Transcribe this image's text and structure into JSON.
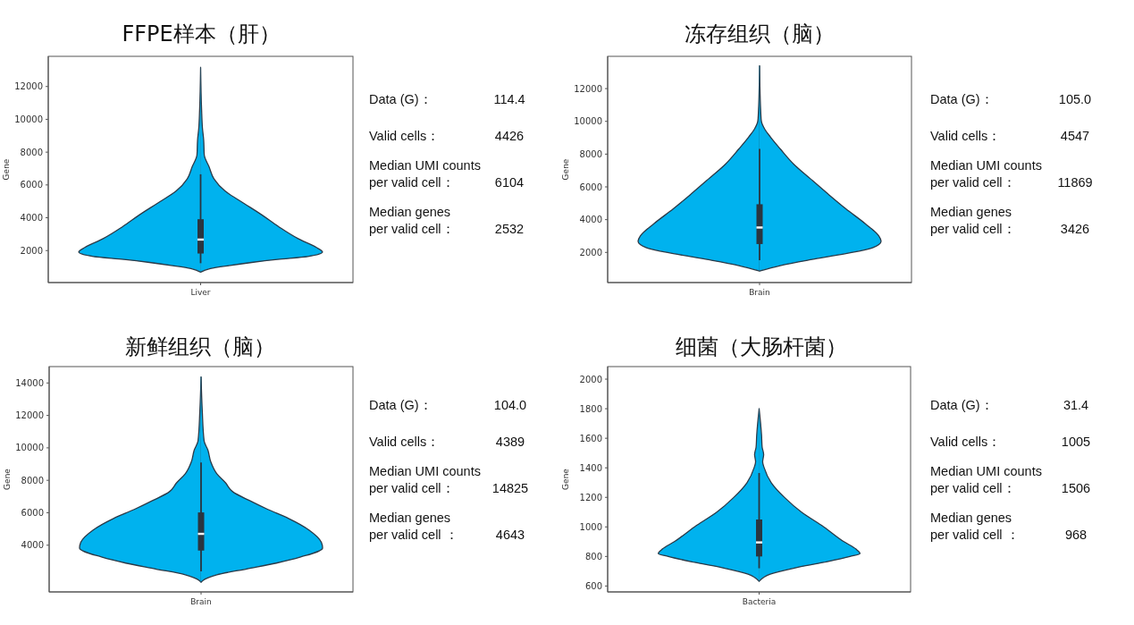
{
  "chart_data": [
    {
      "type": "box",
      "title": "FFPE样本（肝）",
      "ylabel": "Gene",
      "categories": [
        "Liver"
      ],
      "ylim": [
        50,
        13840
      ],
      "yticks": [
        2000,
        4000,
        6000,
        8000,
        10000,
        12000
      ],
      "color": "#2a3540",
      "boxes": [
        {
          "low": 1230,
          "q1": 1820,
          "median": 2670,
          "q3": 3910,
          "high": 6650
        }
      ]
    },
    {
      "type": "other",
      "annotations": [
        "Data (G)：",
        "114.4",
        "Valid cells：",
        "4426",
        "Median UMI counts\nper valid cell：",
        "6104",
        "Median genes\nper valid cell：",
        "2532"
      ]
    },
    {
      "type": "box",
      "title": "冻存组织（脑）",
      "ylabel": "Gene",
      "categories": [
        "Brain"
      ],
      "ylim": [
        160,
        13970
      ],
      "yticks": [
        2000,
        4000,
        6000,
        8000,
        10000,
        12000
      ],
      "color": "#2a3540",
      "boxes": [
        {
          "low": 1530,
          "q1": 2510,
          "median": 3520,
          "q3": 4940,
          "high": 8320
        }
      ]
    },
    {
      "type": "other",
      "annotations": [
        "Data (G)：",
        "105.0",
        "Valid cells：",
        "4547",
        "Median UMI counts\nper valid cell：",
        "11869",
        "Median genes\nper valid cell：",
        "3426"
      ]
    },
    {
      "type": "box",
      "title": "新鲜组织（脑）",
      "ylabel": "Gene",
      "categories": [
        "Brain"
      ],
      "ylim": [
        1120,
        15010
      ],
      "yticks": [
        4000,
        6000,
        8000,
        10000,
        12000,
        14000
      ],
      "color": "#2a3540",
      "boxes": [
        {
          "low": 2390,
          "q1": 3670,
          "median": 4700,
          "q3": 6020,
          "high": 9100
        }
      ]
    },
    {
      "type": "other",
      "annotations": [
        "Data (G)：",
        "104.0",
        "Valid cells：",
        "4389",
        "Median UMI counts\nper valid cell：",
        "14825",
        "Median genes\nper valid cell ：",
        "4643"
      ]
    },
    {
      "type": "box",
      "title": "细菌（大肠杆菌）",
      "ylabel": "Gene",
      "categories": [
        "Bacteria"
      ],
      "ylim": [
        560,
        2085
      ],
      "yticks": [
        600,
        800,
        1000,
        1200,
        1400,
        1600,
        1800,
        2000
      ],
      "color": "#2a3540",
      "boxes": [
        {
          "low": 720,
          "q1": 800,
          "median": 895,
          "q3": 1050,
          "high": 1365
        }
      ]
    },
    {
      "type": "other",
      "annotations": [
        "Data (G)：",
        "31.4",
        "Valid cells：",
        "1005",
        "Median UMI counts\nper valid cell：",
        "1506",
        "Median genes\nper valid cell ：",
        "968"
      ]
    }
  ]
}
